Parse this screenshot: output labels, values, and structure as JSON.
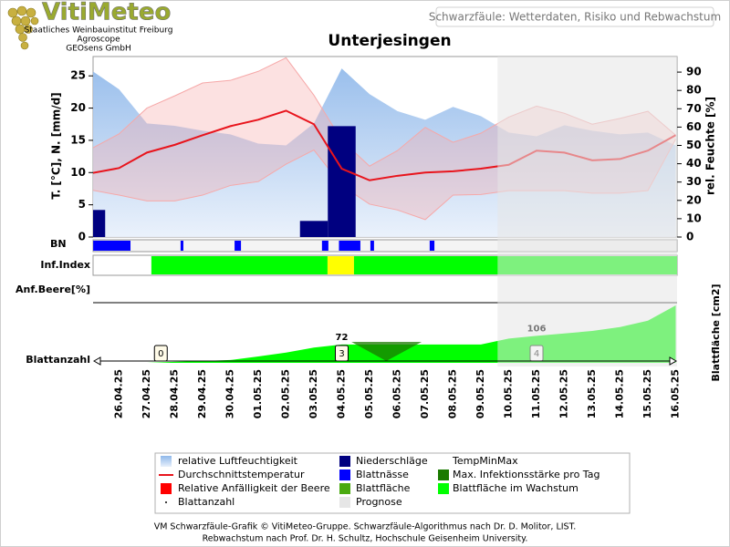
{
  "header": {
    "logo": "VitiMeteo",
    "org_lines": [
      "Staatliches Weinbauinstitut Freiburg",
      "Agroscope",
      "GEOsens GmbH"
    ],
    "title": "Schwarzfäule: Wetterdaten, Risiko und Rebwachstum"
  },
  "chart_data": {
    "type": "weather_panel",
    "title": "Unterjesingen",
    "ylabel": "T. [°C], N. [mm/d]",
    "y2label": "rel. Feuchte [%]",
    "y3label": "Blattfläche [cm2]",
    "row_labels": [
      "BN",
      "Inf.Index",
      "Anf.Beere[%]",
      "Blattanzahl"
    ],
    "categories": [
      null,
      "26.04.25",
      "27.04.25",
      "28.04.25",
      "29.04.25",
      "30.04.25",
      "01.05.25",
      "02.05.25",
      "03.05.25",
      "04.05.25",
      "05.05.25",
      "06.05.25",
      "07.05.25",
      "08.05.25",
      "09.05.25",
      "10.05.25",
      "11.05.25",
      "12.05.25",
      "13.05.25",
      "14.05.25",
      "15.05.25",
      "16.05.25"
    ],
    "ylim": [
      0,
      28
    ],
    "yticks": [
      0,
      5,
      10,
      15,
      20,
      25
    ],
    "y2lim": [
      0,
      98.5
    ],
    "y2ticks": [
      0,
      10,
      20,
      30,
      40,
      50,
      60,
      70,
      80,
      90
    ],
    "y3lim": [
      0,
      225
    ],
    "forecast_start": 14.6,
    "humidity": [
      91,
      80.6,
      62,
      60.7,
      58,
      56,
      51,
      50,
      62,
      92,
      78,
      68.7,
      64,
      71,
      66,
      57,
      55,
      61,
      58,
      56,
      57,
      50
    ],
    "temperature": [
      9.9,
      10.7,
      13.1,
      14.3,
      15.8,
      17.2,
      18.2,
      19.6,
      17.5,
      10.6,
      8.8,
      9.5,
      10,
      10.2,
      10.6,
      11.2,
      13.4,
      13.1,
      11.9,
      12.1,
      13.4,
      15.8
    ],
    "temp_max": [
      13.7,
      16,
      20,
      21.9,
      23.9,
      24.3,
      25.7,
      27.8,
      22,
      15,
      11,
      13.4,
      17,
      14.7,
      16.1,
      18.6,
      20.3,
      19.2,
      17.5,
      18.4,
      19.5,
      15.8
    ],
    "temp_min": [
      7.3,
      6.5,
      5.6,
      5.6,
      6.5,
      8,
      8.6,
      11.3,
      13.5,
      8,
      5.1,
      4.2,
      2.7,
      6.5,
      6.6,
      7.2,
      7.2,
      7.2,
      6.8,
      6.8,
      7.2,
      15.2
    ],
    "precipitation": [
      4.2,
      0,
      0,
      0,
      0,
      0,
      0,
      0,
      2.5,
      17.2,
      0,
      0,
      0,
      0,
      0,
      0,
      0,
      0,
      0,
      0,
      0,
      0
    ],
    "bn_intervals": [
      [
        0.07,
        1.41
      ],
      [
        3.21,
        3.31
      ],
      [
        5.15,
        5.38
      ],
      [
        8.29,
        8.52
      ],
      [
        8.9,
        9.67
      ],
      [
        10.03,
        10.16
      ],
      [
        12.16,
        12.33
      ]
    ],
    "inf_index": [
      {
        "from": 2.16,
        "to": 8.49,
        "color": "#00ff00"
      },
      {
        "from": 8.49,
        "to": 9.44,
        "color": "#ffff00"
      },
      {
        "from": 9.44,
        "to": 21.1,
        "color": "#00ff00"
      }
    ],
    "leaf_area": {
      "values": [
        null,
        null,
        0,
        4,
        7,
        11,
        25,
        40,
        60,
        72,
        72,
        72,
        72,
        72,
        72,
        95,
        106,
        115,
        125,
        140,
        165,
        225
      ],
      "value_labels": [
        null,
        null,
        null,
        null,
        null,
        null,
        null,
        null,
        null,
        "72",
        null,
        null,
        null,
        null,
        null,
        null,
        "106",
        null,
        null,
        null,
        null,
        null
      ]
    },
    "max_infection": {
      "x": [
        9.35,
        11.87,
        10.6
      ],
      "y": [
        82,
        82,
        7
      ]
    },
    "leaf_count": {
      "x": [
        2.5,
        9,
        16
      ],
      "values": [
        0,
        3,
        4
      ]
    },
    "legend": [
      {
        "name": "relative Luftfeuchtigkeit",
        "color": "#a9c9ef",
        "swatch": "gradient"
      },
      {
        "name": "Niederschläge",
        "color": "#000080",
        "swatch": "box"
      },
      {
        "name": "TempMinMax",
        "color": "#f6a8a8",
        "swatch": "none"
      },
      {
        "name": "Durchschnittstemperatur",
        "color": "#e8141c",
        "swatch": "line"
      },
      {
        "name": "Blattnässe",
        "color": "#0000ff",
        "swatch": "box"
      },
      {
        "name": "Max. Infektionsstärke pro Tag",
        "color": "#1a7a00",
        "swatch": "box"
      },
      {
        "name": "Relative Anfälligkeit der Beere",
        "color": "#ff0000",
        "swatch": "box"
      },
      {
        "name": "Blattfläche",
        "color": "#4aaa10",
        "swatch": "box"
      },
      {
        "name": "Blattfläche im Wachstum",
        "color": "#00ff00",
        "swatch": "box"
      },
      {
        "name": "Blattanzahl",
        "color": "#000000",
        "swatch": "dot"
      },
      {
        "name": "Prognose",
        "color": "#e6e6e6",
        "swatch": "box"
      }
    ]
  },
  "footer": [
    "VM Schwarzfäule-Grafik © VitiMeteo-Gruppe. Schwarzfäule-Algorithmus nach Dr. D. Molitor, LIST.",
    "Rebwachstum nach Prof. Dr. H. Schultz, Hochschule Geisenheim University."
  ]
}
